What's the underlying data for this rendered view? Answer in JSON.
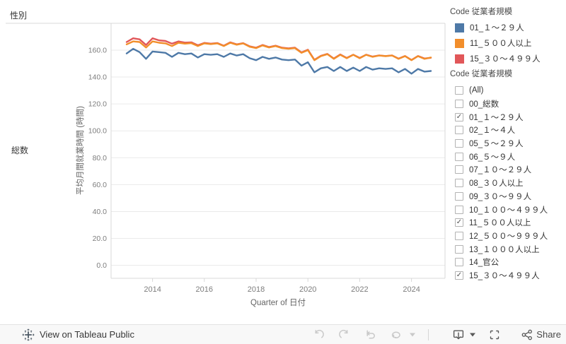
{
  "sheet": {
    "column_header": "性別",
    "row_header": "総数"
  },
  "chart_data": {
    "type": "line",
    "title": "",
    "xlabel": "Quarter of 日付",
    "ylabel": "平均月間就業時間 (時間)",
    "x_unit": "quarter",
    "x_start": "2013-Q1",
    "x_end": "2024-Q4",
    "grid": "horizontal",
    "legend_position": "right",
    "yticks": [
      0,
      20,
      40,
      60,
      80,
      100,
      120,
      140,
      160
    ],
    "ytick_labels": [
      "0.0",
      "20.0",
      "40.0",
      "60.0",
      "80.0",
      "100.0",
      "120.0",
      "140.0",
      "160.0"
    ],
    "xticks": [
      2014,
      2016,
      2018,
      2020,
      2022,
      2024
    ],
    "ylim": [
      -10,
      180
    ],
    "series": [
      {
        "name": "15_３０～４９９人",
        "color": "#e15759",
        "values": [
          166.0,
          168.8,
          168.0,
          163.8,
          168.8,
          167.3,
          166.8,
          164.8,
          166.5,
          165.6,
          165.8,
          163.6,
          165.4,
          164.8,
          165.3,
          163.3,
          165.8,
          164.3,
          165.2,
          162.8,
          161.8,
          163.8,
          162.3,
          163.3,
          161.8,
          161.3,
          161.8,
          158.3,
          160.3,
          152.8,
          155.8,
          157.2,
          153.8,
          156.8,
          154.2,
          156.6,
          154.2,
          156.6,
          155.2,
          156.1,
          155.6,
          156.1,
          153.7,
          155.6,
          152.7,
          155.6,
          153.8,
          154.3
        ]
      },
      {
        "name": "11_５００人以上",
        "color": "#f28e2b",
        "values": [
          164.3,
          166.5,
          166.0,
          162.0,
          166.5,
          165.5,
          165.0,
          163.0,
          165.5,
          164.8,
          165.2,
          163.0,
          165.0,
          164.5,
          165.0,
          163.0,
          165.5,
          164.0,
          165.0,
          162.5,
          161.5,
          163.5,
          162.0,
          163.0,
          161.5,
          161.0,
          161.5,
          158.0,
          160.0,
          152.5,
          155.5,
          157.0,
          153.5,
          156.5,
          154.0,
          156.5,
          154.0,
          156.5,
          155.0,
          156.0,
          155.5,
          156.0,
          153.5,
          155.5,
          152.5,
          155.5,
          153.5,
          154.5
        ]
      },
      {
        "name": "01_１～２９人",
        "color": "#4e79a7",
        "values": [
          157.5,
          161.0,
          158.5,
          153.5,
          159.0,
          158.5,
          158.0,
          155.0,
          158.0,
          157.0,
          157.5,
          154.5,
          157.0,
          156.5,
          157.0,
          155.0,
          157.5,
          156.0,
          157.0,
          154.0,
          152.5,
          155.0,
          153.5,
          154.5,
          153.0,
          152.5,
          153.0,
          148.5,
          151.0,
          143.5,
          146.5,
          147.5,
          144.5,
          147.5,
          144.5,
          147.0,
          144.5,
          147.5,
          145.5,
          146.5,
          146.0,
          146.5,
          143.5,
          146.0,
          142.5,
          146.0,
          144.0,
          144.5
        ]
      }
    ]
  },
  "legend": {
    "title": "Code 従業者規模",
    "items": [
      {
        "label": "01_１～２９人",
        "color": "#4e79a7"
      },
      {
        "label": "11_５００人以上",
        "color": "#f28e2b"
      },
      {
        "label": "15_３０～４９９人",
        "color": "#e15759"
      }
    ]
  },
  "filter": {
    "title": "Code 従業者規模",
    "check_glyph": "✓",
    "items": [
      {
        "label": "(All)",
        "checked": false
      },
      {
        "label": "00_総数",
        "checked": false
      },
      {
        "label": "01_１～２９人",
        "checked": true
      },
      {
        "label": "02_１～４人",
        "checked": false
      },
      {
        "label": "05_５～２９人",
        "checked": false
      },
      {
        "label": "06_５～９人",
        "checked": false
      },
      {
        "label": "07_１０～２９人",
        "checked": false
      },
      {
        "label": "08_３０人以上",
        "checked": false
      },
      {
        "label": "09_３０～９９人",
        "checked": false
      },
      {
        "label": "10_１００～４９９人",
        "checked": false
      },
      {
        "label": "11_５００人以上",
        "checked": true
      },
      {
        "label": "12_５００～９９９人",
        "checked": false
      },
      {
        "label": "13_１０００人以上",
        "checked": false
      },
      {
        "label": "14_官公",
        "checked": false
      },
      {
        "label": "15_３０～４９９人",
        "checked": true
      }
    ]
  },
  "toolbar": {
    "view_label": "View on Tableau Public",
    "share_label": "Share",
    "icons": [
      "tableau-logo",
      "undo",
      "redo",
      "revert",
      "refresh",
      "refresh-caret",
      "download",
      "download-caret",
      "fullscreen",
      "share"
    ]
  },
  "colors": {
    "grid": "#eaeaea",
    "axis_border": "#d8d8d8",
    "tick_text": "#7d7d7d",
    "icon_disabled": "#c9c9c9",
    "icon_enabled": "#595959"
  }
}
